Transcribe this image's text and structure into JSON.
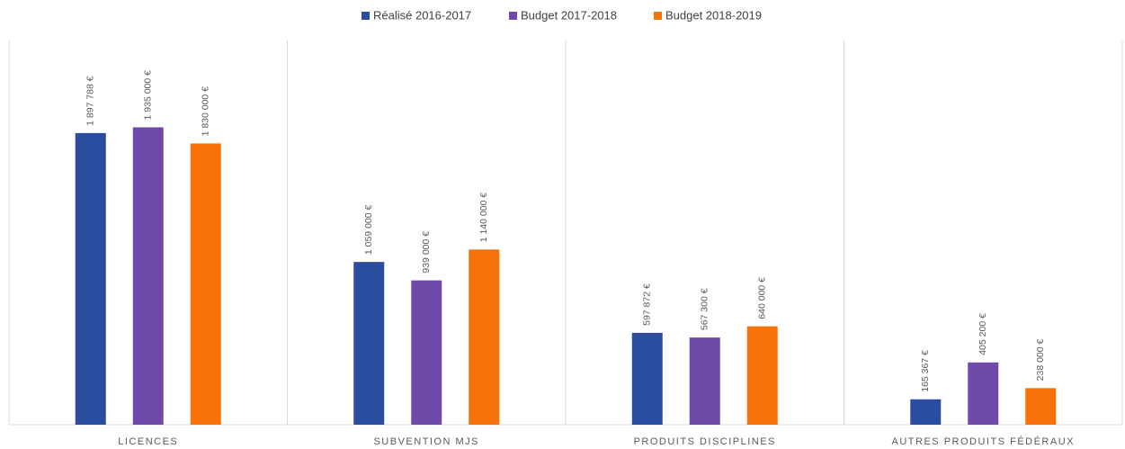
{
  "chart_data": {
    "type": "bar",
    "categories": [
      "LICENCES",
      "SUBVENTION MJS",
      "PRODUITS DISCIPLINES",
      "AUTRES PRODUITS FÉDÉRAUX"
    ],
    "series": [
      {
        "name": "Réalisé 2016-2017",
        "color": "#2a4d9f",
        "values": [
          1897788,
          1059000,
          597872,
          165367
        ],
        "value_labels": [
          "1 897 788 €",
          "1 059 000 €",
          "597 872 €",
          "165 367 €"
        ]
      },
      {
        "name": "Budget 2017-2018",
        "color": "#6f4aa8",
        "values": [
          1935000,
          939000,
          567300,
          405200
        ],
        "value_labels": [
          "1 935 000 €",
          "939 000 €",
          "567 300 €",
          "405 200 €"
        ]
      },
      {
        "name": "Budget 2018-2019",
        "color": "#f97109",
        "values": [
          1830000,
          1140000,
          640000,
          238000
        ],
        "value_labels": [
          "1 830 000 €",
          "1 140 000 €",
          "640 000 €",
          "238 000 €"
        ]
      }
    ],
    "ylim": [
      0,
      2500000
    ],
    "legend": "top"
  }
}
